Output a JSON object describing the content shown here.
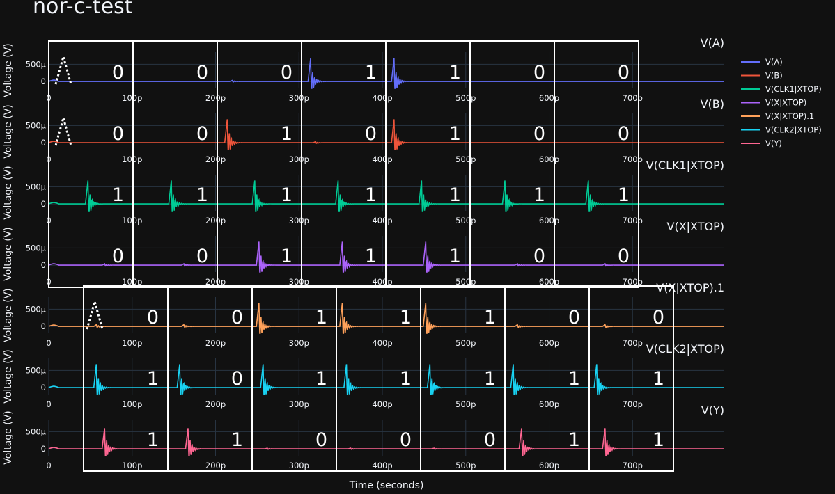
{
  "title": "nor-c-test",
  "chart_data": {
    "type": "line",
    "title": "nor-c-test",
    "xlabel": "Time (seconds)",
    "ylabel": "Voltage (V)",
    "x_tick_labels": [
      "0",
      "100p",
      "200p",
      "300p",
      "400p",
      "500p",
      "600p",
      "700p"
    ],
    "x_ticks": [
      0,
      100,
      200,
      300,
      400,
      500,
      600,
      700
    ],
    "y_tick_labels": [
      "0",
      "500µ"
    ],
    "y_ticks": [
      0,
      0.0005
    ],
    "ylim": [
      -0.0002,
      0.00085
    ],
    "xlim": [
      0,
      810
    ],
    "x_unit": "ps",
    "grid": true,
    "legend_position": "right",
    "series": [
      {
        "name": "V(A)",
        "color": "#636efa",
        "subplot_title": "V(A)",
        "spikes": [
          {
            "t": 220,
            "a": 3e-05
          },
          {
            "t": 314,
            "a": 0.00067
          },
          {
            "t": 414,
            "a": 0.00067
          }
        ],
        "bits": [
          "0",
          "0",
          "0",
          "1",
          "1",
          "0",
          "0"
        ]
      },
      {
        "name": "V(B)",
        "color": "#EF553B",
        "subplot_title": "V(B)",
        "spikes": [
          {
            "t": 214,
            "a": 0.00068
          },
          {
            "t": 320,
            "a": 3e-05
          },
          {
            "t": 414,
            "a": 0.00068
          }
        ],
        "bits": [
          "0",
          "0",
          "1",
          "0",
          "1",
          "0",
          "0"
        ]
      },
      {
        "name": "V(CLK1|XTOP)",
        "color": "#00cc96",
        "subplot_title": "V(CLK1|XTOP)",
        "spikes": [
          {
            "t": 47,
            "a": 0.00068
          },
          {
            "t": 147,
            "a": 0.00068
          },
          {
            "t": 247,
            "a": 0.00068
          },
          {
            "t": 347,
            "a": 0.00068
          },
          {
            "t": 447,
            "a": 0.00068
          },
          {
            "t": 547,
            "a": 0.00068
          },
          {
            "t": 647,
            "a": 0.00068
          }
        ],
        "bits": [
          "1",
          "1",
          "1",
          "1",
          "1",
          "1",
          "1"
        ]
      },
      {
        "name": "V(X|XTOP)",
        "color": "#ab63fa",
        "subplot_title": "V(X|XTOP)",
        "spikes": [
          {
            "t": 67,
            "a": 4e-05
          },
          {
            "t": 162,
            "a": 4e-05
          },
          {
            "t": 252,
            "a": 0.00068
          },
          {
            "t": 352,
            "a": 0.00068
          },
          {
            "t": 452,
            "a": 0.00068
          },
          {
            "t": 562,
            "a": 4e-05
          },
          {
            "t": 667,
            "a": 4e-05
          }
        ],
        "bits": [
          "0",
          "0",
          "1",
          "1",
          "1",
          "0",
          "0"
        ]
      },
      {
        "name": "V(X|XTOP).1",
        "color": "#FFA15A",
        "subplot_title": "V(X|XTOP).1",
        "spikes": [
          {
            "t": 57,
            "a": 5e-05
          },
          {
            "t": 162,
            "a": 5e-05
          },
          {
            "t": 252,
            "a": 0.00068
          },
          {
            "t": 352,
            "a": 0.00068
          },
          {
            "t": 452,
            "a": 0.00068
          },
          {
            "t": 562,
            "a": 5e-05
          },
          {
            "t": 667,
            "a": 5e-05
          }
        ],
        "bits": [
          "0",
          "0",
          "1",
          "1",
          "1",
          "0",
          "0"
        ]
      },
      {
        "name": "V(CLK2|XTOP)",
        "color": "#19d3f3",
        "subplot_title": "V(CLK2|XTOP)",
        "spikes": [
          {
            "t": 57,
            "a": 0.00068
          },
          {
            "t": 157,
            "a": 0.00068
          },
          {
            "t": 257,
            "a": 0.00068
          },
          {
            "t": 357,
            "a": 0.00068
          },
          {
            "t": 457,
            "a": 0.00068
          },
          {
            "t": 557,
            "a": 0.00068
          },
          {
            "t": 657,
            "a": 0.00068
          }
        ],
        "bits": [
          "1",
          "0",
          "1",
          "1",
          "1",
          "1",
          "1"
        ]
      },
      {
        "name": "V(Y)",
        "color": "#FF6692",
        "subplot_title": "V(Y)",
        "spikes": [
          {
            "t": 67,
            "a": 0.0006
          },
          {
            "t": 167,
            "a": 0.0006
          },
          {
            "t": 262,
            "a": 2e-05
          },
          {
            "t": 362,
            "a": 2e-05
          },
          {
            "t": 462,
            "a": 2e-05
          },
          {
            "t": 567,
            "a": 0.0006
          },
          {
            "t": 667,
            "a": 0.0006
          }
        ],
        "bits": [
          "1",
          "1",
          "0",
          "0",
          "0",
          "1",
          "1"
        ]
      }
    ]
  }
}
